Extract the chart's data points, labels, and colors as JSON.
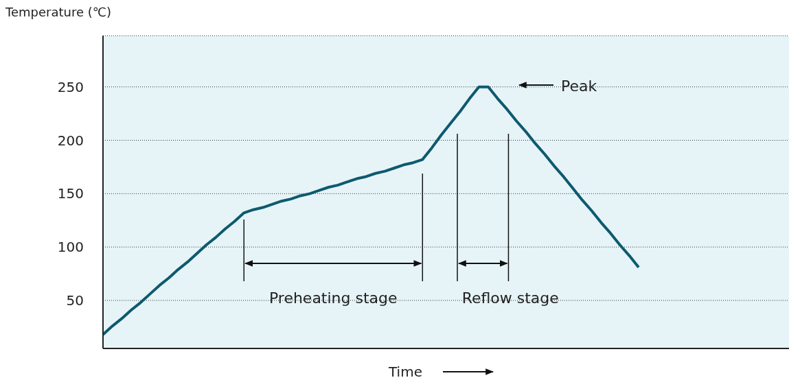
{
  "chart_data": {
    "type": "line",
    "ylabel": "Temperature (℃)",
    "xlabel": "Time",
    "categories": [
      null,
      null,
      null,
      null,
      null,
      null,
      null,
      null,
      null,
      null,
      null,
      null,
      null,
      null,
      null,
      null,
      null,
      null,
      null,
      null,
      null,
      null,
      null,
      null,
      null,
      null,
      null,
      null,
      null,
      null,
      null,
      null,
      null,
      null,
      null,
      null,
      null,
      null,
      null,
      null,
      null,
      null,
      null,
      null,
      null,
      null,
      null,
      null,
      null,
      null,
      null,
      null,
      null,
      null,
      null,
      null,
      null,
      null,
      null,
      null,
      null,
      null,
      null,
      null,
      null,
      null,
      null,
      null,
      null,
      null,
      null,
      null,
      null,
      null
    ],
    "series": [
      {
        "color": "#0e5a6e",
        "values": [
          18,
          26,
          33,
          41,
          48,
          56,
          64,
          71,
          79,
          86,
          94,
          102,
          109,
          117,
          124,
          132,
          135,
          137,
          140,
          143,
          145,
          148,
          150,
          153,
          156,
          158,
          161,
          164,
          166,
          169,
          171,
          174,
          177,
          179,
          182,
          193,
          205,
          216,
          227,
          239,
          250,
          250,
          239,
          229,
          218,
          208,
          197,
          187,
          176,
          166,
          155,
          144,
          134,
          123,
          113,
          102,
          92,
          81,
          null,
          null,
          null,
          null,
          null,
          null,
          null,
          null,
          null,
          null,
          null,
          null,
          null,
          null,
          null,
          null
        ]
      }
    ],
    "ylim": [
      5,
      298
    ],
    "yticks": [
      50,
      100,
      150,
      200,
      250
    ],
    "grid": "y",
    "marker": "none",
    "line_style": "solid",
    "tick_labels": "y",
    "annotations": [
      "Peak",
      "Preheating stage",
      "Reflow stage"
    ]
  }
}
